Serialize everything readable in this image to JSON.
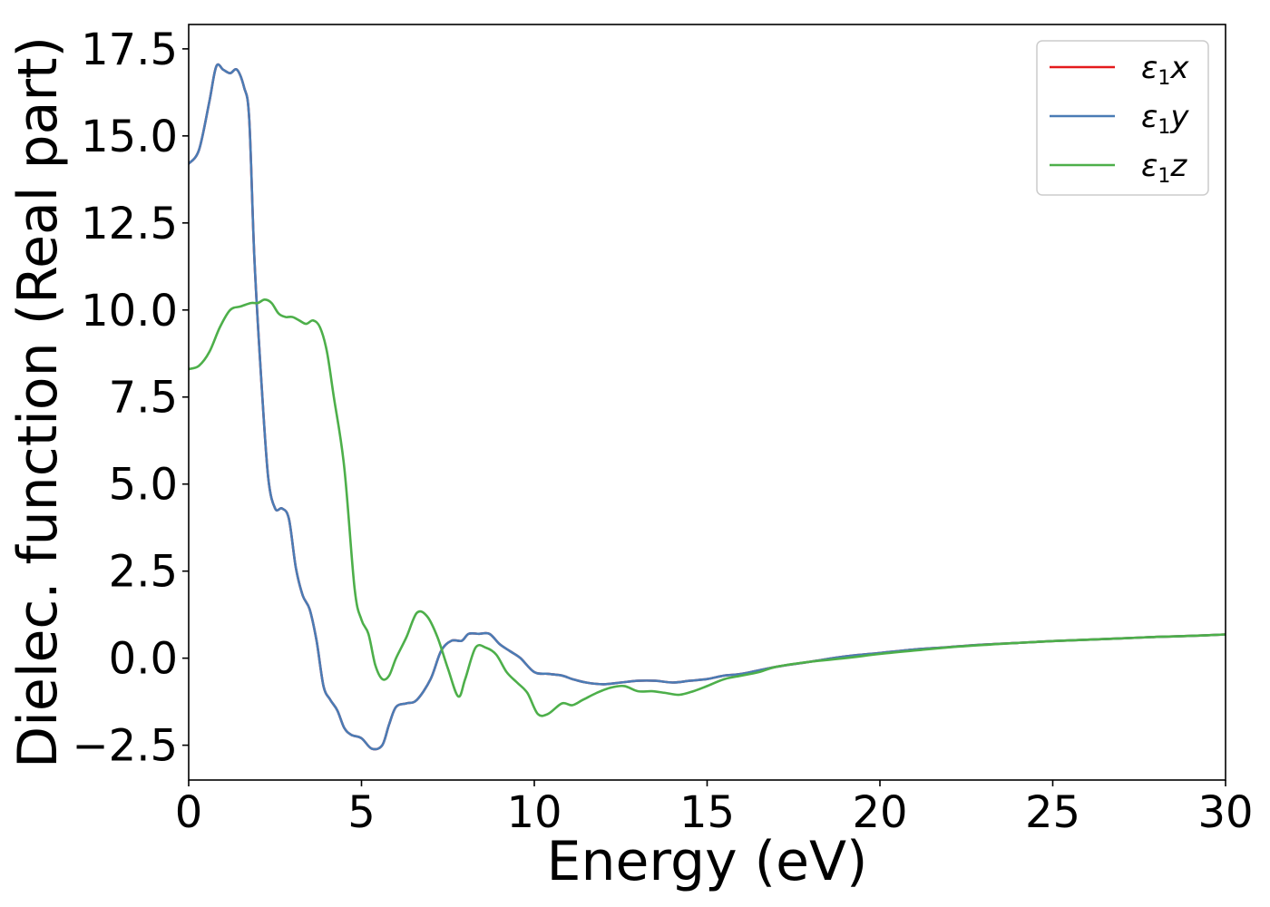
{
  "chart_data": {
    "type": "line",
    "xlabel": "Energy (eV)",
    "ylabel": "Dielec. function (Real part)",
    "xlim": [
      0,
      30
    ],
    "ylim": [
      -3.5,
      18.2
    ],
    "xticks": [
      0,
      5,
      10,
      15,
      20,
      25,
      30
    ],
    "xtick_labels": [
      "0",
      "5",
      "10",
      "15",
      "20",
      "25",
      "30"
    ],
    "yticks": [
      -2.5,
      0.0,
      2.5,
      5.0,
      7.5,
      10.0,
      12.5,
      15.0,
      17.5
    ],
    "ytick_labels": [
      "−2.5",
      "0.0",
      "2.5",
      "5.0",
      "7.5",
      "10.0",
      "12.5",
      "15.0",
      "17.5"
    ],
    "grid": false,
    "legend_position": "top-right",
    "series": [
      {
        "name": "ε1x",
        "name_base": "ε",
        "name_sub": "1",
        "name_suffix": "x",
        "color": "#e41a1c",
        "x": [
          0,
          0.3,
          0.6,
          0.8,
          1.0,
          1.2,
          1.4,
          1.6,
          1.75,
          1.9,
          2.1,
          2.3,
          2.5,
          2.7,
          2.9,
          3.1,
          3.3,
          3.5,
          3.7,
          3.9,
          4.1,
          4.3,
          4.5,
          4.7,
          5.0,
          5.3,
          5.6,
          5.8,
          6.0,
          6.3,
          6.6,
          7.0,
          7.3,
          7.6,
          7.9,
          8.1,
          8.4,
          8.7,
          9.0,
          9.3,
          9.6,
          10.0,
          10.4,
          10.8,
          11.1,
          11.5,
          12.0,
          12.5,
          13.0,
          13.5,
          14.0,
          14.5,
          15.0,
          15.5,
          16.0,
          17.0,
          18.0,
          19.0,
          20.0,
          21.0,
          22.0,
          23.0,
          24.0,
          25.0,
          26.0,
          27.0,
          28.0,
          29.0,
          30.0
        ],
        "y": [
          14.2,
          14.6,
          16.0,
          17.0,
          16.9,
          16.8,
          16.9,
          16.4,
          15.5,
          11.5,
          8.0,
          5.2,
          4.3,
          4.3,
          4.0,
          2.6,
          1.8,
          1.4,
          0.5,
          -0.8,
          -1.2,
          -1.5,
          -2.0,
          -2.2,
          -2.3,
          -2.6,
          -2.5,
          -1.9,
          -1.4,
          -1.3,
          -1.2,
          -0.6,
          0.2,
          0.5,
          0.5,
          0.7,
          0.7,
          0.7,
          0.4,
          0.2,
          0.0,
          -0.4,
          -0.45,
          -0.5,
          -0.6,
          -0.7,
          -0.75,
          -0.7,
          -0.65,
          -0.65,
          -0.7,
          -0.65,
          -0.6,
          -0.5,
          -0.45,
          -0.25,
          -0.1,
          0.05,
          0.15,
          0.25,
          0.32,
          0.39,
          0.44,
          0.49,
          0.53,
          0.57,
          0.61,
          0.64,
          0.68
        ]
      },
      {
        "name": "ε1y",
        "name_base": "ε",
        "name_sub": "1",
        "name_suffix": "y",
        "color": "#4a7cb5",
        "x": [
          0,
          0.3,
          0.6,
          0.8,
          1.0,
          1.2,
          1.4,
          1.6,
          1.75,
          1.9,
          2.1,
          2.3,
          2.5,
          2.7,
          2.9,
          3.1,
          3.3,
          3.5,
          3.7,
          3.9,
          4.1,
          4.3,
          4.5,
          4.7,
          5.0,
          5.3,
          5.6,
          5.8,
          6.0,
          6.3,
          6.6,
          7.0,
          7.3,
          7.6,
          7.9,
          8.1,
          8.4,
          8.7,
          9.0,
          9.3,
          9.6,
          10.0,
          10.4,
          10.8,
          11.1,
          11.5,
          12.0,
          12.5,
          13.0,
          13.5,
          14.0,
          14.5,
          15.0,
          15.5,
          16.0,
          17.0,
          18.0,
          19.0,
          20.0,
          21.0,
          22.0,
          23.0,
          24.0,
          25.0,
          26.0,
          27.0,
          28.0,
          29.0,
          30.0
        ],
        "y": [
          14.2,
          14.6,
          16.0,
          17.0,
          16.9,
          16.8,
          16.9,
          16.4,
          15.5,
          11.5,
          8.0,
          5.2,
          4.3,
          4.3,
          4.0,
          2.6,
          1.8,
          1.4,
          0.5,
          -0.8,
          -1.2,
          -1.5,
          -2.0,
          -2.2,
          -2.3,
          -2.6,
          -2.5,
          -1.9,
          -1.4,
          -1.3,
          -1.2,
          -0.6,
          0.2,
          0.5,
          0.5,
          0.7,
          0.7,
          0.7,
          0.4,
          0.2,
          0.0,
          -0.4,
          -0.45,
          -0.5,
          -0.6,
          -0.7,
          -0.75,
          -0.7,
          -0.65,
          -0.65,
          -0.7,
          -0.65,
          -0.6,
          -0.5,
          -0.45,
          -0.25,
          -0.1,
          0.05,
          0.15,
          0.25,
          0.32,
          0.39,
          0.44,
          0.49,
          0.53,
          0.57,
          0.61,
          0.64,
          0.68
        ]
      },
      {
        "name": "ε1z",
        "name_base": "ε",
        "name_sub": "1",
        "name_suffix": "z",
        "color": "#4daf4a",
        "x": [
          0,
          0.3,
          0.6,
          0.9,
          1.2,
          1.5,
          1.8,
          2.0,
          2.2,
          2.4,
          2.6,
          2.8,
          3.0,
          3.2,
          3.4,
          3.6,
          3.8,
          4.0,
          4.2,
          4.5,
          4.8,
          5.0,
          5.2,
          5.4,
          5.6,
          5.8,
          6.0,
          6.3,
          6.6,
          6.9,
          7.2,
          7.5,
          7.8,
          8.0,
          8.3,
          8.6,
          8.9,
          9.2,
          9.5,
          9.8,
          10.1,
          10.4,
          10.8,
          11.1,
          11.4,
          11.8,
          12.2,
          12.6,
          13.0,
          13.4,
          13.8,
          14.2,
          14.6,
          15.0,
          15.5,
          16.0,
          16.5,
          17.0,
          18.0,
          19.0,
          20.0,
          21.0,
          22.0,
          23.0,
          24.0,
          25.0,
          26.0,
          27.0,
          28.0,
          29.0,
          30.0
        ],
        "y": [
          8.3,
          8.4,
          8.8,
          9.5,
          10.0,
          10.1,
          10.2,
          10.2,
          10.3,
          10.2,
          9.9,
          9.8,
          9.8,
          9.7,
          9.6,
          9.7,
          9.5,
          8.8,
          7.5,
          5.5,
          2.0,
          1.1,
          0.7,
          -0.2,
          -0.6,
          -0.5,
          0.0,
          0.6,
          1.3,
          1.2,
          0.6,
          -0.3,
          -1.1,
          -0.6,
          0.3,
          0.3,
          0.1,
          -0.4,
          -0.7,
          -1.0,
          -1.6,
          -1.6,
          -1.3,
          -1.35,
          -1.2,
          -1.0,
          -0.85,
          -0.8,
          -0.95,
          -0.95,
          -1.0,
          -1.05,
          -0.95,
          -0.8,
          -0.6,
          -0.5,
          -0.4,
          -0.25,
          -0.1,
          0.0,
          0.12,
          0.22,
          0.31,
          0.38,
          0.44,
          0.49,
          0.53,
          0.57,
          0.61,
          0.64,
          0.68
        ]
      }
    ]
  }
}
